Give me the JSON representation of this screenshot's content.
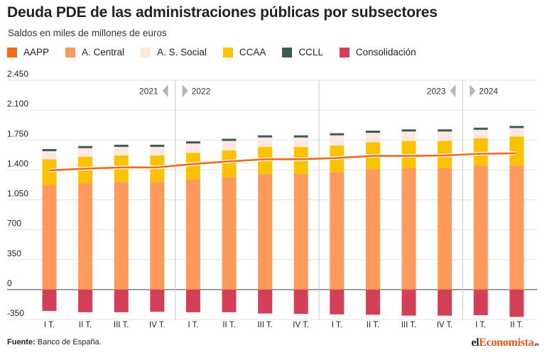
{
  "title": "Deuda PDE de las administraciones públicas por subsectores",
  "subtitle": "Saldos en miles de millones de euros",
  "legend": [
    {
      "label": "AAPP",
      "color": "#f06a17"
    },
    {
      "label": "A. Central",
      "color": "#ff9a5c"
    },
    {
      "label": "A. S. Social",
      "color": "#fde8e0"
    },
    {
      "label": "CCAA",
      "color": "#fcc200"
    },
    {
      "label": "CCLL",
      "color": "#3c5a58"
    },
    {
      "label": "Consolidación",
      "color": "#d43f58"
    }
  ],
  "footer": {
    "label": "Fuente:",
    "text": "Banco de España."
  },
  "brand": {
    "part1": "el",
    "part2": "Economista",
    "part3": ".es"
  },
  "chart_data": {
    "type": "bar",
    "stacked": true,
    "categories": [
      "I T.",
      "II T.",
      "III T.",
      "IV T.",
      "I T.",
      "II T.",
      "III T.",
      "IV T.",
      "I T.",
      "II T.",
      "III T.",
      "IV T.",
      "I T.",
      "II T."
    ],
    "period_labels": [
      {
        "text": "2021",
        "arrow": "left",
        "at_category": 3
      },
      {
        "text": "2022",
        "arrow": "right",
        "at_category": 4
      },
      {
        "text": "2023",
        "arrow": "left",
        "at_category": 11
      },
      {
        "text": "2024",
        "arrow": "right",
        "at_category": 12
      }
    ],
    "year_dividers_after_category": [
      3,
      7,
      11
    ],
    "ylim": [
      -350,
      2450
    ],
    "yticks": [
      -350,
      0,
      350,
      700,
      1050,
      1400,
      1750,
      2100,
      2450
    ],
    "ytick_labels": [
      "-350",
      "0",
      "350",
      "700",
      "1.050",
      "1.400",
      "1.750",
      "2.100",
      "2.450"
    ],
    "grid": true,
    "series": [
      {
        "name": "A. Central",
        "color": "#ff9a5c",
        "values": [
          1225,
          1245,
          1260,
          1260,
          1290,
          1315,
          1355,
          1355,
          1375,
          1410,
          1420,
          1420,
          1455,
          1455
        ]
      },
      {
        "name": "CCAA",
        "color": "#fcc200",
        "values": [
          300,
          310,
          310,
          310,
          310,
          315,
          315,
          315,
          310,
          315,
          320,
          320,
          315,
          335
        ]
      },
      {
        "name": "A. S. Social",
        "color": "#fde8e0",
        "values": [
          95,
          100,
          100,
          100,
          110,
          110,
          110,
          110,
          120,
          110,
          110,
          110,
          100,
          100
        ]
      },
      {
        "name": "CCLL",
        "color": "#3c5a58",
        "values": [
          25,
          25,
          25,
          25,
          25,
          25,
          25,
          25,
          25,
          25,
          25,
          25,
          25,
          25
        ]
      },
      {
        "name": "Consolidación",
        "color": "#d43f58",
        "values": [
          -250,
          -265,
          -265,
          -260,
          -265,
          -265,
          -280,
          -285,
          -290,
          -295,
          -305,
          -305,
          -300,
          -320
        ]
      }
    ],
    "line": {
      "name": "AAPP",
      "color": "#f06a17",
      "values": [
        1395,
        1415,
        1430,
        1430,
        1470,
        1500,
        1525,
        1525,
        1540,
        1565,
        1565,
        1570,
        1590,
        1595
      ]
    }
  }
}
